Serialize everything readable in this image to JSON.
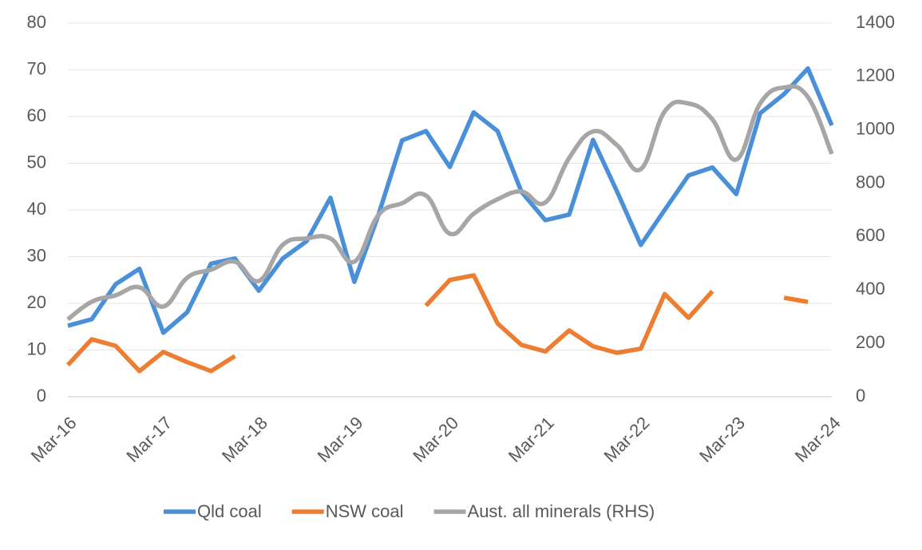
{
  "chart_data": {
    "type": "line",
    "categories": [
      "Mar-16",
      null,
      null,
      null,
      "Mar-17",
      null,
      null,
      null,
      "Mar-18",
      null,
      null,
      null,
      "Mar-19",
      null,
      null,
      null,
      "Mar-20",
      null,
      null,
      null,
      "Mar-21",
      null,
      null,
      null,
      "Mar-22",
      null,
      null,
      null,
      "Mar-23",
      null,
      null,
      null,
      "Mar-24"
    ],
    "series": [
      {
        "name": "Qld coal",
        "color": "#4a90d9",
        "smooth": false,
        "values": [
          15.2,
          16.6,
          24.1,
          27.4,
          13.7,
          18.1,
          28.5,
          29.6,
          22.7,
          29.6,
          33.3,
          42.6,
          24.6,
          38.8,
          54.9,
          56.9,
          49.2,
          60.9,
          56.9,
          43.9,
          37.8,
          39,
          55,
          44,
          32.5,
          40,
          47.4,
          49.1,
          43.4,
          60.7,
          64.8,
          70.3,
          58.1
        ]
      },
      {
        "name": "NSW coal",
        "color": "#ed7d31",
        "smooth": false,
        "values": [
          6.8,
          12.3,
          10.9,
          5.5,
          9.6,
          7.4,
          5.5,
          8.7,
          null,
          null,
          null,
          null,
          null,
          null,
          null,
          19.5,
          25,
          26,
          15.7,
          11.1,
          9.7,
          14.2,
          10.8,
          9.4,
          10.3,
          22,
          16.9,
          22.6,
          null,
          null,
          21.2,
          20.3,
          null
        ]
      },
      {
        "name": "Aust. all minerals (RHS)",
        "color": "#a6a6a6",
        "axis": "y2",
        "smooth": true,
        "values": [
          290,
          356,
          380,
          410,
          338,
          446,
          476,
          506,
          434,
          569,
          593,
          593,
          506,
          680,
          725,
          754,
          611,
          686,
          740,
          769,
          728,
          895,
          994,
          943,
          853,
          1069,
          1099,
          1039,
          889,
          1099,
          1159,
          1123,
          910
        ]
      }
    ],
    "ylim": [
      0,
      80
    ],
    "yticks": [
      0,
      10,
      20,
      30,
      40,
      50,
      60,
      70,
      80
    ],
    "y2lim": [
      0,
      1400
    ],
    "y2ticks": [
      0,
      200,
      400,
      600,
      800,
      1000,
      1200,
      1400
    ],
    "grid": true,
    "legend": "bottom"
  }
}
